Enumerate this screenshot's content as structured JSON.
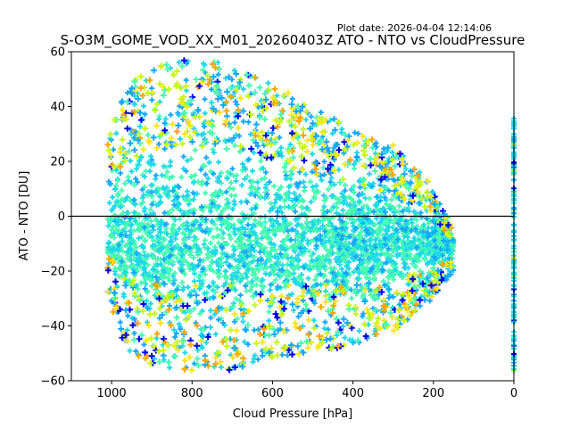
{
  "chart_data": {
    "type": "scatter",
    "title": "S-O3M_GOME_VOD_XX_M01_20260403Z ATO - NTO vs CloudPressure",
    "plot_date": "Plot date: 2026-04-04 12:14:06",
    "xlabel": "Cloud Pressure [hPa]",
    "ylabel": "ATO - NTO [DU]",
    "xlim": [
      1100,
      0
    ],
    "ylim": [
      -60,
      60
    ],
    "x_inverted": true,
    "x_ticks": [
      1000,
      800,
      600,
      400,
      200,
      0
    ],
    "y_ticks": [
      -60,
      -40,
      -20,
      0,
      20,
      40,
      60
    ],
    "reference_line_y": 0,
    "marker": "plus",
    "grid": false,
    "density_colors": [
      "#47fbb0",
      "#1fd8e8",
      "#16a8ff",
      "#0000e8",
      "#c8f51a",
      "#f9e61b",
      "#ffa500"
    ],
    "envelope": [
      {
        "x": 1010,
        "lo": -30,
        "hi": 30
      },
      {
        "x": 960,
        "lo": -50,
        "hi": 48
      },
      {
        "x": 900,
        "lo": -55,
        "hi": 55
      },
      {
        "x": 800,
        "lo": -57,
        "hi": 58
      },
      {
        "x": 700,
        "lo": -56,
        "hi": 55
      },
      {
        "x": 600,
        "lo": -52,
        "hi": 48
      },
      {
        "x": 500,
        "lo": -50,
        "hi": 40
      },
      {
        "x": 400,
        "lo": -47,
        "hi": 32
      },
      {
        "x": 300,
        "lo": -42,
        "hi": 26
      },
      {
        "x": 220,
        "lo": -33,
        "hi": 15
      },
      {
        "x": 150,
        "lo": -20,
        "hi": -5
      }
    ],
    "core_center_y": -10,
    "edge_column_x": 0
  }
}
